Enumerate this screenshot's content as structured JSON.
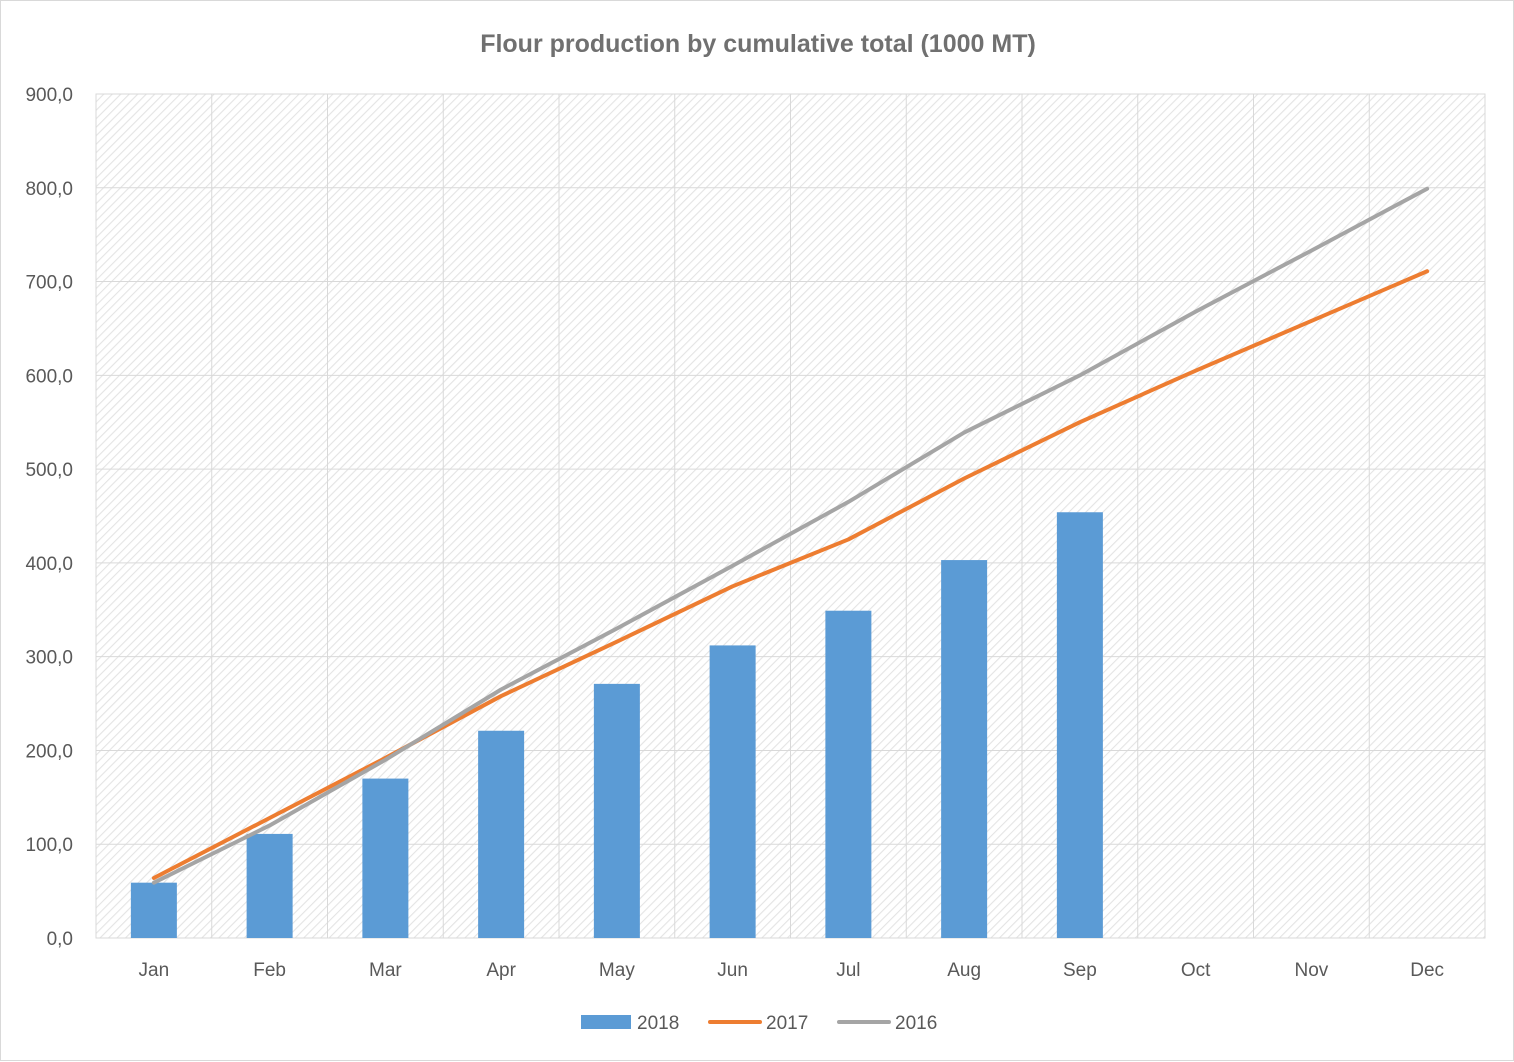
{
  "chart_data": {
    "type": "bar",
    "title": "Flour production by cumulative total (1000 MT)",
    "xlabel": "",
    "ylabel": "",
    "categories": [
      "Jan",
      "Feb",
      "Mar",
      "Apr",
      "May",
      "Jun",
      "Jul",
      "Aug",
      "Sep",
      "Oct",
      "Nov",
      "Dec"
    ],
    "ylim": [
      0,
      900
    ],
    "yticks": [
      "0,0",
      "100,0",
      "200,0",
      "300,0",
      "400,0",
      "500,0",
      "600,0",
      "700,0",
      "800,0",
      "900,0"
    ],
    "grid": true,
    "legend_position": "bottom",
    "series": [
      {
        "name": "2018",
        "type": "bar",
        "color": "#5b9bd5",
        "values": [
          59,
          111,
          170,
          221,
          271,
          312,
          349,
          403,
          454,
          null,
          null,
          null
        ]
      },
      {
        "name": "2017",
        "type": "line",
        "color": "#ed7d31",
        "values": [
          64,
          128,
          192,
          258,
          316,
          375,
          425,
          490,
          550,
          605,
          658,
          711
        ]
      },
      {
        "name": "2016",
        "type": "line",
        "color": "#a5a5a5",
        "values": [
          59,
          120,
          190,
          265,
          330,
          397,
          465,
          539,
          600,
          668,
          733,
          799
        ]
      }
    ]
  }
}
